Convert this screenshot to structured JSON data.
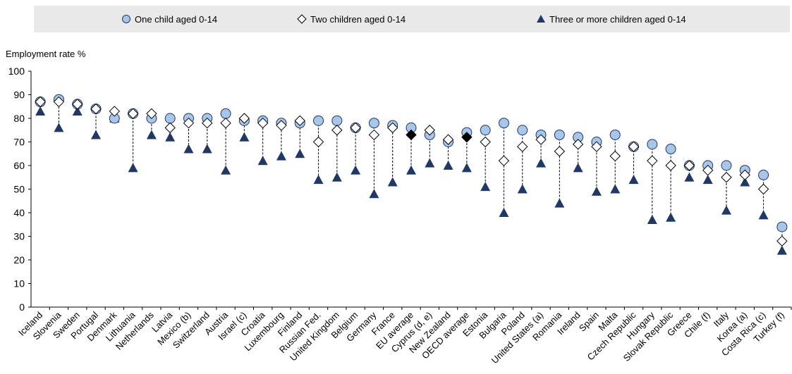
{
  "legend": {
    "one": "One child aged 0-14",
    "two": "Two children aged 0-14",
    "three": "Three or more children aged 0-14"
  },
  "colors": {
    "one_fill": "#a9c6e8",
    "one_stroke": "#1f3864",
    "two_fill": "#ffffff",
    "two_stroke": "#000000",
    "three_fill": "#1f3864",
    "average_fill": "#000000"
  },
  "chart_data": {
    "type": "scatter",
    "title": "",
    "xlabel": "",
    "ylabel": "Employment rate %",
    "ylim": [
      0,
      100
    ],
    "yticks": [
      0,
      10,
      20,
      30,
      40,
      50,
      60,
      70,
      80,
      90,
      100
    ],
    "grid": false,
    "legend_position": "top",
    "categories": [
      "Iceland",
      "Slovenia",
      "Sweden",
      "Portugal",
      "Denmark",
      "Lithuania",
      "Netherlands",
      "Latvia",
      "Mexico (b)",
      "Switzerland",
      "Austria",
      "Israel (c)",
      "Croatia",
      "Luxembourg",
      "Finland",
      "Russian Fed.",
      "United Kingdom",
      "Belgium",
      "Germany",
      "France",
      "EU average",
      "Cyprus (d, e)",
      "New Zealand",
      "OECD average",
      "Estonia",
      "Bulgaria",
      "Poland",
      "United States (a)",
      "Romania",
      "Ireland",
      "Spain",
      "Malta",
      "Czech Republic",
      "Hungary",
      "Slovak Republic",
      "Greece",
      "Chile (f)",
      "Italy",
      "Korea (a)",
      "Costa Rica (c)",
      "Turkey (f)"
    ],
    "highlight_categories": [
      "EU average",
      "OECD average"
    ],
    "series": [
      {
        "name": "One child aged 0-14",
        "marker": "circle",
        "values": [
          87,
          88,
          86,
          84,
          80,
          82,
          80,
          80,
          80,
          80,
          82,
          79,
          79,
          78,
          78,
          79,
          79,
          76,
          78,
          77,
          76,
          73,
          70,
          74,
          75,
          78,
          75,
          73,
          73,
          72,
          70,
          73,
          68,
          69,
          67,
          60,
          60,
          60,
          58,
          56,
          34
        ]
      },
      {
        "name": "Two children aged 0-14",
        "marker": "diamond",
        "values": [
          87,
          87,
          86,
          84,
          83,
          82,
          82,
          76,
          78,
          78,
          78,
          80,
          78,
          77,
          79,
          70,
          75,
          76,
          73,
          76,
          73,
          75,
          71,
          72,
          70,
          62,
          68,
          71,
          66,
          69,
          68,
          64,
          68,
          62,
          60,
          60,
          58,
          55,
          56,
          50,
          28
        ]
      },
      {
        "name": "Three or more children aged 0-14",
        "marker": "triangle",
        "values": [
          83,
          76,
          83,
          73,
          80,
          59,
          73,
          72,
          67,
          67,
          58,
          72,
          62,
          64,
          65,
          54,
          55,
          58,
          48,
          53,
          58,
          61,
          60,
          59,
          51,
          40,
          50,
          61,
          44,
          59,
          49,
          50,
          54,
          37,
          38,
          55,
          54,
          41,
          53,
          39,
          24
        ]
      }
    ]
  }
}
